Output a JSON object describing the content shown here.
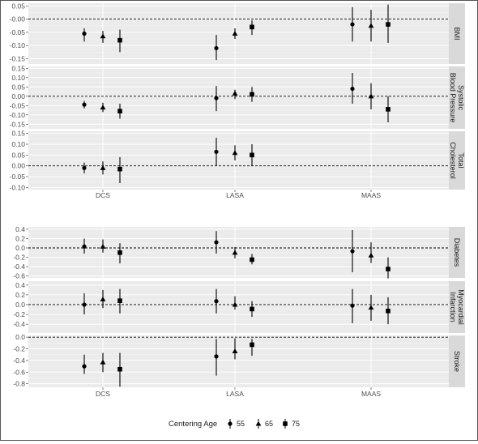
{
  "chart_data": {
    "type": "scatter",
    "subtype": "point-range faceted",
    "categories": [
      "DCS",
      "LASA",
      "MAAS"
    ],
    "legend": {
      "title": "Centering Age",
      "placement": "bottom",
      "entries": [
        {
          "label": "55",
          "shape": "circle"
        },
        {
          "label": "65",
          "shape": "triangle"
        },
        {
          "label": "75",
          "shape": "square"
        }
      ]
    },
    "reference_line": 0,
    "grid": true,
    "groups": [
      {
        "panels": [
          {
            "strip": [
              "BMI"
            ],
            "ylim": [
              -0.17,
              0.06
            ],
            "yticks": [
              0.05,
              0.0,
              -0.05,
              -0.1,
              -0.15
            ],
            "ytick_labels": [
              "0.05",
              "-0.00",
              "-0.05",
              "-0.10",
              "-0.15"
            ],
            "points": [
              {
                "category": "DCS",
                "age": "55",
                "y": -0.055,
                "lo": -0.085,
                "hi": -0.035
              },
              {
                "category": "DCS",
                "age": "65",
                "y": -0.065,
                "lo": -0.09,
                "hi": -0.045
              },
              {
                "category": "DCS",
                "age": "75",
                "y": -0.08,
                "lo": -0.125,
                "hi": -0.04
              },
              {
                "category": "LASA",
                "age": "55",
                "y": -0.11,
                "lo": -0.155,
                "hi": -0.06
              },
              {
                "category": "LASA",
                "age": "65",
                "y": -0.055,
                "lo": -0.075,
                "hi": -0.035
              },
              {
                "category": "LASA",
                "age": "75",
                "y": -0.03,
                "lo": -0.06,
                "hi": -0.005
              },
              {
                "category": "MAAS",
                "age": "55",
                "y": -0.02,
                "lo": -0.085,
                "hi": 0.045
              },
              {
                "category": "MAAS",
                "age": "65",
                "y": -0.025,
                "lo": -0.085,
                "hi": 0.035
              },
              {
                "category": "MAAS",
                "age": "75",
                "y": -0.02,
                "lo": -0.09,
                "hi": 0.055
              }
            ]
          },
          {
            "strip": [
              "Systolic",
              "Blood Pressure"
            ],
            "ylim": [
              -0.175,
              0.16
            ],
            "yticks": [
              0.15,
              0.1,
              0.05,
              0.0,
              -0.05,
              -0.1,
              -0.15
            ],
            "ytick_labels": [
              "0.15",
              "0.10",
              "0.05",
              "0.00",
              "-0.05",
              "-0.10",
              "-0.15"
            ],
            "points": [
              {
                "category": "DCS",
                "age": "55",
                "y": -0.045,
                "lo": -0.065,
                "hi": -0.025
              },
              {
                "category": "DCS",
                "age": "65",
                "y": -0.06,
                "lo": -0.085,
                "hi": -0.035
              },
              {
                "category": "DCS",
                "age": "75",
                "y": -0.08,
                "lo": -0.12,
                "hi": -0.04
              },
              {
                "category": "LASA",
                "age": "55",
                "y": -0.01,
                "lo": -0.08,
                "hi": 0.055
              },
              {
                "category": "LASA",
                "age": "65",
                "y": 0.015,
                "lo": -0.015,
                "hi": 0.035
              },
              {
                "category": "LASA",
                "age": "75",
                "y": 0.01,
                "lo": -0.03,
                "hi": 0.05
              },
              {
                "category": "MAAS",
                "age": "55",
                "y": 0.04,
                "lo": -0.04,
                "hi": 0.125
              },
              {
                "category": "MAAS",
                "age": "65",
                "y": 0.0,
                "lo": -0.07,
                "hi": 0.07
              },
              {
                "category": "MAAS",
                "age": "75",
                "y": -0.07,
                "lo": -0.14,
                "hi": 0.0
              }
            ]
          },
          {
            "strip": [
              "Total",
              "Cholesterol"
            ],
            "ylim": [
              -0.11,
              0.16
            ],
            "yticks": [
              0.15,
              0.1,
              0.05,
              0.0,
              -0.05,
              -0.1
            ],
            "ytick_labels": [
              "0.15",
              "0.10",
              "0.05",
              "0.00",
              "-0.05",
              "-0.10"
            ],
            "points": [
              {
                "category": "DCS",
                "age": "55",
                "y": -0.01,
                "lo": -0.035,
                "hi": 0.015
              },
              {
                "category": "DCS",
                "age": "65",
                "y": -0.01,
                "lo": -0.04,
                "hi": 0.02
              },
              {
                "category": "DCS",
                "age": "75",
                "y": -0.015,
                "lo": -0.08,
                "hi": 0.04
              },
              {
                "category": "LASA",
                "age": "55",
                "y": 0.065,
                "lo": 0.0,
                "hi": 0.13
              },
              {
                "category": "LASA",
                "age": "65",
                "y": 0.06,
                "lo": 0.025,
                "hi": 0.095
              },
              {
                "category": "LASA",
                "age": "75",
                "y": 0.05,
                "lo": 0.0,
                "hi": 0.1
              },
              {
                "category": "MAAS",
                "age": "55",
                "y": null,
                "lo": null,
                "hi": null
              },
              {
                "category": "MAAS",
                "age": "65",
                "y": null,
                "lo": null,
                "hi": null
              },
              {
                "category": "MAAS",
                "age": "75",
                "y": null,
                "lo": null,
                "hi": null
              }
            ]
          }
        ]
      },
      {
        "panels": [
          {
            "strip": [
              "Diabetes"
            ],
            "ylim": [
              -0.64,
              0.45
            ],
            "yticks": [
              0.4,
              0.2,
              0.0,
              -0.2,
              -0.4,
              -0.6
            ],
            "ytick_labels": [
              "0.4",
              "0.2",
              "0.0",
              "-0.2",
              "-0.4",
              "-0.6"
            ],
            "points": [
              {
                "category": "DCS",
                "age": "55",
                "y": 0.03,
                "lo": -0.12,
                "hi": 0.2
              },
              {
                "category": "DCS",
                "age": "65",
                "y": 0.03,
                "lo": -0.1,
                "hi": 0.18
              },
              {
                "category": "DCS",
                "age": "75",
                "y": -0.1,
                "lo": -0.33,
                "hi": 0.1
              },
              {
                "category": "LASA",
                "age": "55",
                "y": 0.12,
                "lo": -0.12,
                "hi": 0.36
              },
              {
                "category": "LASA",
                "age": "65",
                "y": -0.1,
                "lo": -0.22,
                "hi": 0.02
              },
              {
                "category": "LASA",
                "age": "75",
                "y": -0.25,
                "lo": -0.35,
                "hi": -0.13
              },
              {
                "category": "MAAS",
                "age": "55",
                "y": -0.07,
                "lo": -0.52,
                "hi": 0.38
              },
              {
                "category": "MAAS",
                "age": "65",
                "y": -0.16,
                "lo": -0.32,
                "hi": 0.12
              },
              {
                "category": "MAAS",
                "age": "75",
                "y": -0.45,
                "lo": -0.65,
                "hi": -0.2
              }
            ]
          },
          {
            "strip": [
              "Myocardial",
              "Infarction"
            ],
            "ylim": [
              -0.58,
              0.48
            ],
            "yticks": [
              0.4,
              0.2,
              0.0,
              -0.2,
              -0.4
            ],
            "ytick_labels": [
              "0.4",
              "0.2",
              "0.0",
              "-0.2",
              "-0.4"
            ],
            "points": [
              {
                "category": "DCS",
                "age": "55",
                "y": 0.0,
                "lo": -0.2,
                "hi": 0.23
              },
              {
                "category": "DCS",
                "age": "65",
                "y": 0.11,
                "lo": -0.07,
                "hi": 0.3
              },
              {
                "category": "DCS",
                "age": "75",
                "y": 0.08,
                "lo": -0.18,
                "hi": 0.32
              },
              {
                "category": "LASA",
                "age": "55",
                "y": 0.07,
                "lo": -0.18,
                "hi": 0.32
              },
              {
                "category": "LASA",
                "age": "65",
                "y": 0.0,
                "lo": -0.1,
                "hi": 0.17
              },
              {
                "category": "LASA",
                "age": "75",
                "y": -0.09,
                "lo": -0.25,
                "hi": 0.07
              },
              {
                "category": "MAAS",
                "age": "55",
                "y": -0.02,
                "lo": -0.38,
                "hi": 0.32
              },
              {
                "category": "MAAS",
                "age": "65",
                "y": -0.06,
                "lo": -0.33,
                "hi": 0.2
              },
              {
                "category": "MAAS",
                "age": "75",
                "y": -0.13,
                "lo": -0.4,
                "hi": 0.15
              }
            ]
          },
          {
            "strip": [
              "Stroke"
            ],
            "ylim": [
              -0.86,
              0.03
            ],
            "yticks": [
              0.0,
              -0.2,
              -0.4,
              -0.6,
              -0.8
            ],
            "ytick_labels": [
              "0.0",
              "-0.2",
              "-0.4",
              "-0.6",
              "-0.8"
            ],
            "points": [
              {
                "category": "DCS",
                "age": "55",
                "y": -0.5,
                "lo": -0.63,
                "hi": -0.3
              },
              {
                "category": "DCS",
                "age": "65",
                "y": -0.43,
                "lo": -0.6,
                "hi": -0.27
              },
              {
                "category": "DCS",
                "age": "75",
                "y": -0.55,
                "lo": -0.85,
                "hi": -0.27
              },
              {
                "category": "LASA",
                "age": "55",
                "y": -0.33,
                "lo": -0.66,
                "hi": -0.03
              },
              {
                "category": "LASA",
                "age": "65",
                "y": -0.24,
                "lo": -0.38,
                "hi": -0.02
              },
              {
                "category": "LASA",
                "age": "75",
                "y": -0.13,
                "lo": -0.32,
                "hi": -0.03
              },
              {
                "category": "MAAS",
                "age": "55",
                "y": null,
                "lo": null,
                "hi": null
              },
              {
                "category": "MAAS",
                "age": "65",
                "y": null,
                "lo": null,
                "hi": null
              },
              {
                "category": "MAAS",
                "age": "75",
                "y": null,
                "lo": null,
                "hi": null
              }
            ]
          }
        ]
      }
    ]
  }
}
